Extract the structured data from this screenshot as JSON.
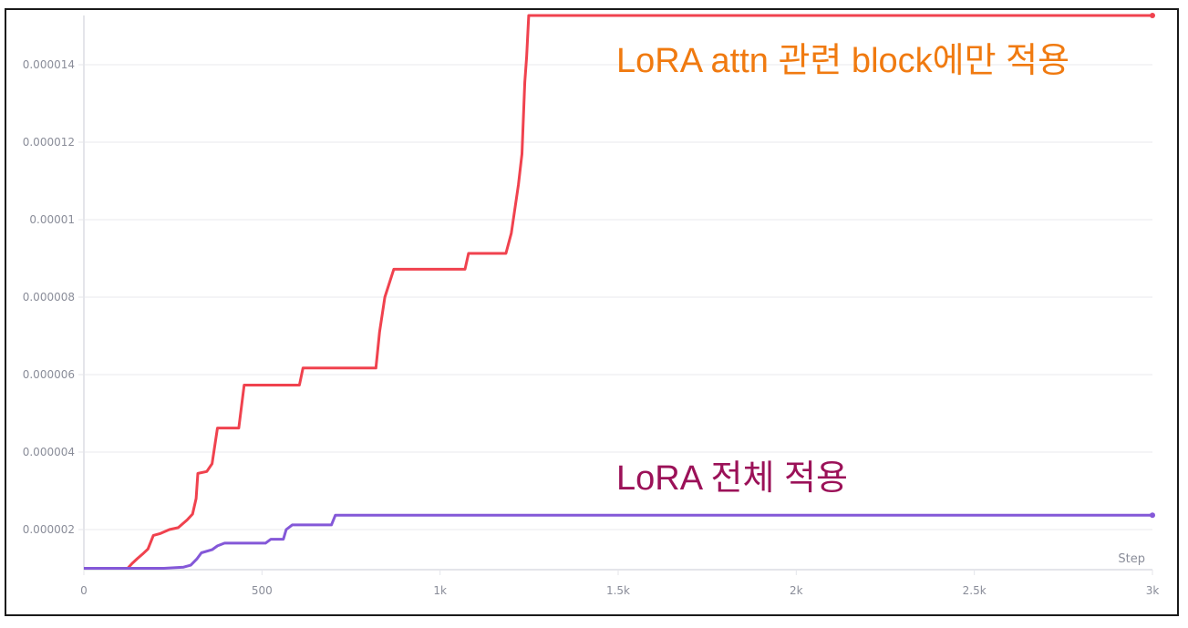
{
  "chart_data": {
    "type": "line",
    "title": "",
    "xlabel": "Step",
    "ylabel": "",
    "xlim": [
      0,
      3000
    ],
    "ylim": [
      1e-06,
      1.53e-05
    ],
    "grid": true,
    "legend": "none (inline text annotations)",
    "x_ticks": [
      {
        "value": 0,
        "label": "0"
      },
      {
        "value": 500,
        "label": "500"
      },
      {
        "value": 1000,
        "label": "1k"
      },
      {
        "value": 1500,
        "label": "1.5k"
      },
      {
        "value": 2000,
        "label": "2k"
      },
      {
        "value": 2500,
        "label": "2.5k"
      },
      {
        "value": 3000,
        "label": "3k"
      }
    ],
    "y_ticks": [
      {
        "value": 2e-06,
        "label": "0.000002"
      },
      {
        "value": 4e-06,
        "label": "0.000004"
      },
      {
        "value": 6e-06,
        "label": "0.000006"
      },
      {
        "value": 8e-06,
        "label": "0.000008"
      },
      {
        "value": 1e-05,
        "label": "0.00001"
      },
      {
        "value": 1.2e-05,
        "label": "0.000012"
      },
      {
        "value": 1.4e-05,
        "label": "0.000014"
      }
    ],
    "series": [
      {
        "name": "LoRA attn 관련 block에만 적용",
        "color": "#f0424e",
        "annotation_color": "#f07a10",
        "points": [
          [
            0,
            1e-06
          ],
          [
            123,
            1e-06
          ],
          [
            135,
            1.12e-06
          ],
          [
            150,
            1.25e-06
          ],
          [
            165,
            1.37e-06
          ],
          [
            180,
            1.5e-06
          ],
          [
            195,
            1.85e-06
          ],
          [
            215,
            1.9e-06
          ],
          [
            240,
            2e-06
          ],
          [
            265,
            2.05e-06
          ],
          [
            290,
            2.25e-06
          ],
          [
            305,
            2.4e-06
          ],
          [
            315,
            2.8e-06
          ],
          [
            320,
            3.45e-06
          ],
          [
            345,
            3.5e-06
          ],
          [
            360,
            3.7e-06
          ],
          [
            375,
            4.62e-06
          ],
          [
            435,
            4.62e-06
          ],
          [
            450,
            5.73e-06
          ],
          [
            605,
            5.73e-06
          ],
          [
            615,
            6.17e-06
          ],
          [
            820,
            6.17e-06
          ],
          [
            830,
            7.1e-06
          ],
          [
            845,
            8e-06
          ],
          [
            870,
            8.72e-06
          ],
          [
            1070,
            8.72e-06
          ],
          [
            1080,
            9.13e-06
          ],
          [
            1185,
            9.13e-06
          ],
          [
            1200,
            9.65e-06
          ],
          [
            1220,
            1.09e-05
          ],
          [
            1230,
            1.17e-05
          ],
          [
            1238,
            1.355e-05
          ],
          [
            1243,
            1.42e-05
          ],
          [
            1249,
            1.527e-05
          ],
          [
            3000,
            1.527e-05
          ]
        ]
      },
      {
        "name": "LoRA 전체 적용",
        "color": "#8458d8",
        "annotation_color": "#9b1158",
        "points": [
          [
            0,
            1e-06
          ],
          [
            225,
            1e-06
          ],
          [
            280,
            1.03e-06
          ],
          [
            300,
            1.08e-06
          ],
          [
            318,
            1.25e-06
          ],
          [
            330,
            1.4e-06
          ],
          [
            360,
            1.48e-06
          ],
          [
            375,
            1.58e-06
          ],
          [
            395,
            1.65e-06
          ],
          [
            510,
            1.65e-06
          ],
          [
            525,
            1.75e-06
          ],
          [
            560,
            1.75e-06
          ],
          [
            568,
            2e-06
          ],
          [
            585,
            2.12e-06
          ],
          [
            695,
            2.12e-06
          ],
          [
            706,
            2.37e-06
          ],
          [
            3000,
            2.37e-06
          ]
        ]
      }
    ]
  },
  "annotations": {
    "attn_only": "LoRA attn 관련 block에만 적용",
    "full": "LoRA 전체 적용"
  },
  "axis": {
    "x_title": "Step"
  }
}
